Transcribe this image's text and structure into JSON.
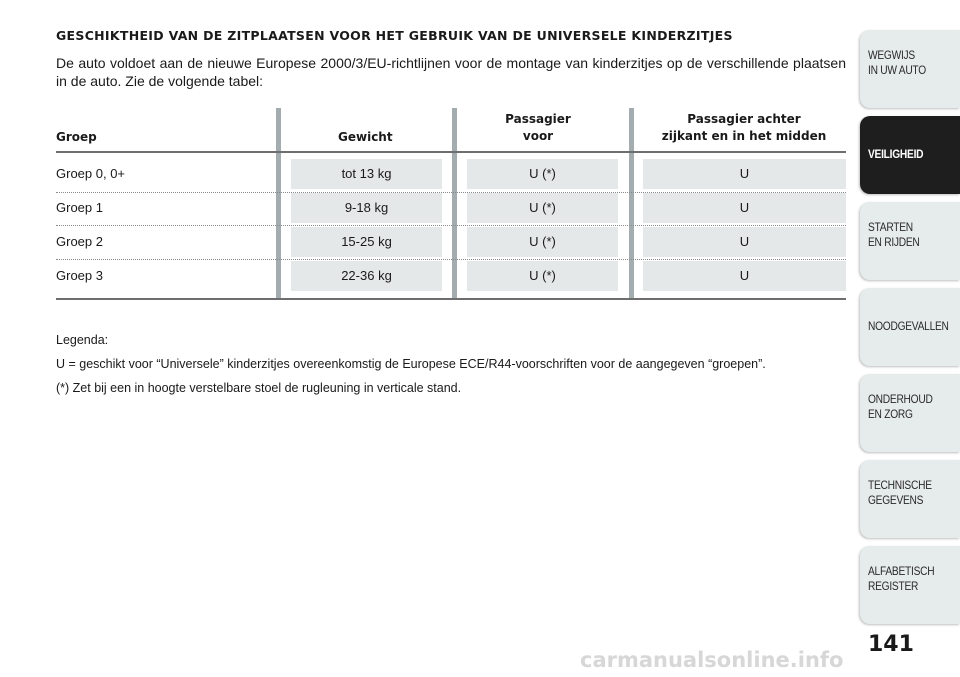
{
  "heading": "GESCHIKTHEID VAN DE ZITPLAATSEN VOOR HET GEBRUIK VAN DE UNIVERSELE KINDERZITJES",
  "intro": "De auto voldoet aan de nieuwe Europese 2000/3/EU-richtlijnen voor de montage van kinderzitjes op de verschillende plaatsen in de auto. Zie de volgende tabel:",
  "table": {
    "headers": {
      "groep": "Groep",
      "gewicht": "Gewicht",
      "voor_line1": "Passagier",
      "voor_line2": "voor",
      "achter_line1": "Passagier achter",
      "achter_line2": "zijkant en in het midden"
    },
    "rows": [
      {
        "groep": "Groep 0, 0+",
        "gewicht": "tot 13 kg",
        "voor": "U (*)",
        "achter": "U"
      },
      {
        "groep": "Groep 1",
        "gewicht": "9-18 kg",
        "voor": "U (*)",
        "achter": "U"
      },
      {
        "groep": "Groep 2",
        "gewicht": "15-25 kg",
        "voor": "U (*)",
        "achter": "U"
      },
      {
        "groep": "Groep 3",
        "gewicht": "22-36 kg",
        "voor": "U (*)",
        "achter": "U"
      }
    ]
  },
  "legend": {
    "title": "Legenda:",
    "line1": "U = geschikt voor “Universele” kinderzitjes overeenkomstig de Europese ECE/R44-voorschriften voor de aangegeven “groepen”.",
    "line2": "(*) Zet bij een in hoogte verstelbare stoel de rugleuning in verticale stand."
  },
  "side_tabs": [
    {
      "label": "WEGWIJS\nIN UW AUTO",
      "active": false
    },
    {
      "label": "VEILIGHEID",
      "active": true
    },
    {
      "label": "STARTEN\nEN RIJDEN",
      "active": false
    },
    {
      "label": "NOODGEVALLEN",
      "active": false
    },
    {
      "label": "ONDERHOUD\nEN ZORG",
      "active": false
    },
    {
      "label": "TECHNISCHE\nGEGEVENS",
      "active": false
    },
    {
      "label": "ALFABETISCH\nREGISTER",
      "active": false
    }
  ],
  "page_number": "141",
  "watermark": "carmanualsonline.info",
  "colors": {
    "active_tab": "#1e1e1e",
    "tab": "#e6ebeb",
    "cell_shade": "#e5e8e9",
    "separator": "#a3acae"
  }
}
